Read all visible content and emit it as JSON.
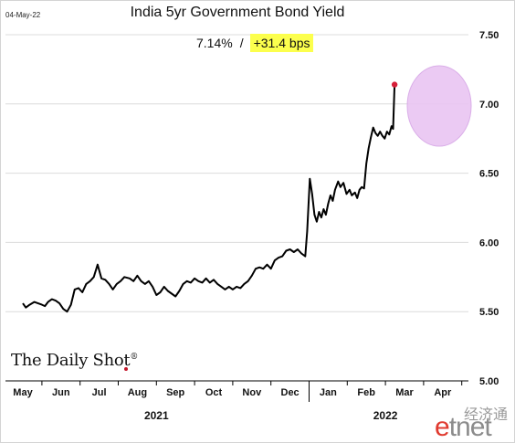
{
  "header": {
    "date": "04-May-22",
    "title": "India 5yr Government Bond Yield",
    "current_value": "7.14%",
    "separator": "/",
    "change": "+31.4 bps"
  },
  "branding": {
    "logo_text": "The Daily Shot",
    "logo_mark": "®",
    "watermark_cn": "经济通",
    "watermark_en_accent": "e",
    "watermark_en_rest": "tnet"
  },
  "colors": {
    "line": "#000000",
    "highlight_fill": "#e9c5f2",
    "highlight_stroke": "#d6a6e6",
    "endpoint": "#d6203a",
    "change_highlight": "#fcff4d",
    "gridline": "#dcdcdc"
  },
  "chart_data": {
    "type": "line",
    "title": "India 5yr Government Bond Yield",
    "xlabel": "",
    "ylabel": "",
    "y_axis_side": "right",
    "ylim": [
      5.0,
      7.5
    ],
    "y_ticks": [
      "5.00",
      "5.50",
      "6.00",
      "6.50",
      "7.00",
      "7.50"
    ],
    "grid": "horizontal",
    "month_ticks": [
      "May",
      "Jun",
      "Jul",
      "Aug",
      "Sep",
      "Oct",
      "Nov",
      "Dec",
      "Jan",
      "Feb",
      "Mar",
      "Apr"
    ],
    "year_labels": [
      "2021",
      "2022"
    ],
    "highlight": "circle around latest values",
    "series": [
      {
        "values": [
          [
            0.0,
            5.56
          ],
          [
            0.08,
            5.53
          ],
          [
            0.18,
            5.55
          ],
          [
            0.3,
            5.57
          ],
          [
            0.4,
            5.56
          ],
          [
            0.5,
            5.55
          ],
          [
            0.58,
            5.54
          ],
          [
            0.66,
            5.57
          ],
          [
            0.76,
            5.59
          ],
          [
            0.86,
            5.58
          ],
          [
            0.96,
            5.56
          ],
          [
            1.06,
            5.52
          ],
          [
            1.16,
            5.5
          ],
          [
            1.26,
            5.55
          ],
          [
            1.36,
            5.66
          ],
          [
            1.46,
            5.67
          ],
          [
            1.56,
            5.64
          ],
          [
            1.66,
            5.7
          ],
          [
            1.76,
            5.72
          ],
          [
            1.86,
            5.75
          ],
          [
            1.96,
            5.84
          ],
          [
            2.06,
            5.74
          ],
          [
            2.16,
            5.73
          ],
          [
            2.26,
            5.7
          ],
          [
            2.36,
            5.66
          ],
          [
            2.46,
            5.7
          ],
          [
            2.56,
            5.72
          ],
          [
            2.66,
            5.75
          ],
          [
            2.8,
            5.74
          ],
          [
            2.9,
            5.72
          ],
          [
            3.0,
            5.76
          ],
          [
            3.1,
            5.72
          ],
          [
            3.2,
            5.7
          ],
          [
            3.3,
            5.72
          ],
          [
            3.4,
            5.68
          ],
          [
            3.5,
            5.62
          ],
          [
            3.6,
            5.64
          ],
          [
            3.7,
            5.68
          ],
          [
            3.8,
            5.65
          ],
          [
            3.9,
            5.63
          ],
          [
            4.0,
            5.61
          ],
          [
            4.1,
            5.65
          ],
          [
            4.2,
            5.7
          ],
          [
            4.3,
            5.72
          ],
          [
            4.4,
            5.71
          ],
          [
            4.5,
            5.74
          ],
          [
            4.6,
            5.72
          ],
          [
            4.7,
            5.71
          ],
          [
            4.8,
            5.74
          ],
          [
            4.9,
            5.71
          ],
          [
            5.0,
            5.73
          ],
          [
            5.1,
            5.7
          ],
          [
            5.2,
            5.68
          ],
          [
            5.3,
            5.66
          ],
          [
            5.4,
            5.68
          ],
          [
            5.5,
            5.66
          ],
          [
            5.6,
            5.68
          ],
          [
            5.7,
            5.67
          ],
          [
            5.8,
            5.7
          ],
          [
            5.9,
            5.72
          ],
          [
            6.0,
            5.76
          ],
          [
            6.1,
            5.81
          ],
          [
            6.2,
            5.82
          ],
          [
            6.3,
            5.81
          ],
          [
            6.4,
            5.84
          ],
          [
            6.5,
            5.81
          ],
          [
            6.6,
            5.87
          ],
          [
            6.7,
            5.89
          ],
          [
            6.8,
            5.9
          ],
          [
            6.9,
            5.94
          ],
          [
            7.0,
            5.95
          ],
          [
            7.1,
            5.93
          ],
          [
            7.2,
            5.95
          ],
          [
            7.3,
            5.92
          ],
          [
            7.4,
            5.9
          ],
          [
            7.45,
            6.08
          ],
          [
            7.52,
            6.46
          ],
          [
            7.58,
            6.35
          ],
          [
            7.64,
            6.2
          ],
          [
            7.7,
            6.15
          ],
          [
            7.76,
            6.22
          ],
          [
            7.82,
            6.18
          ],
          [
            7.88,
            6.24
          ],
          [
            7.94,
            6.2
          ],
          [
            8.0,
            6.28
          ],
          [
            8.06,
            6.34
          ],
          [
            8.12,
            6.3
          ],
          [
            8.18,
            6.38
          ],
          [
            8.26,
            6.44
          ],
          [
            8.32,
            6.4
          ],
          [
            8.4,
            6.43
          ],
          [
            8.48,
            6.35
          ],
          [
            8.56,
            6.38
          ],
          [
            8.62,
            6.34
          ],
          [
            8.7,
            6.36
          ],
          [
            8.76,
            6.32
          ],
          [
            8.82,
            6.38
          ],
          [
            8.88,
            6.4
          ],
          [
            8.94,
            6.39
          ],
          [
            9.0,
            6.57
          ],
          [
            9.06,
            6.68
          ],
          [
            9.12,
            6.76
          ],
          [
            9.18,
            6.83
          ],
          [
            9.24,
            6.79
          ],
          [
            9.3,
            6.77
          ],
          [
            9.36,
            6.8
          ],
          [
            9.42,
            6.77
          ],
          [
            9.48,
            6.75
          ],
          [
            9.54,
            6.8
          ],
          [
            9.6,
            6.78
          ],
          [
            9.66,
            6.84
          ],
          [
            9.7,
            6.82
          ],
          [
            9.74,
            7.14
          ]
        ]
      }
    ]
  }
}
